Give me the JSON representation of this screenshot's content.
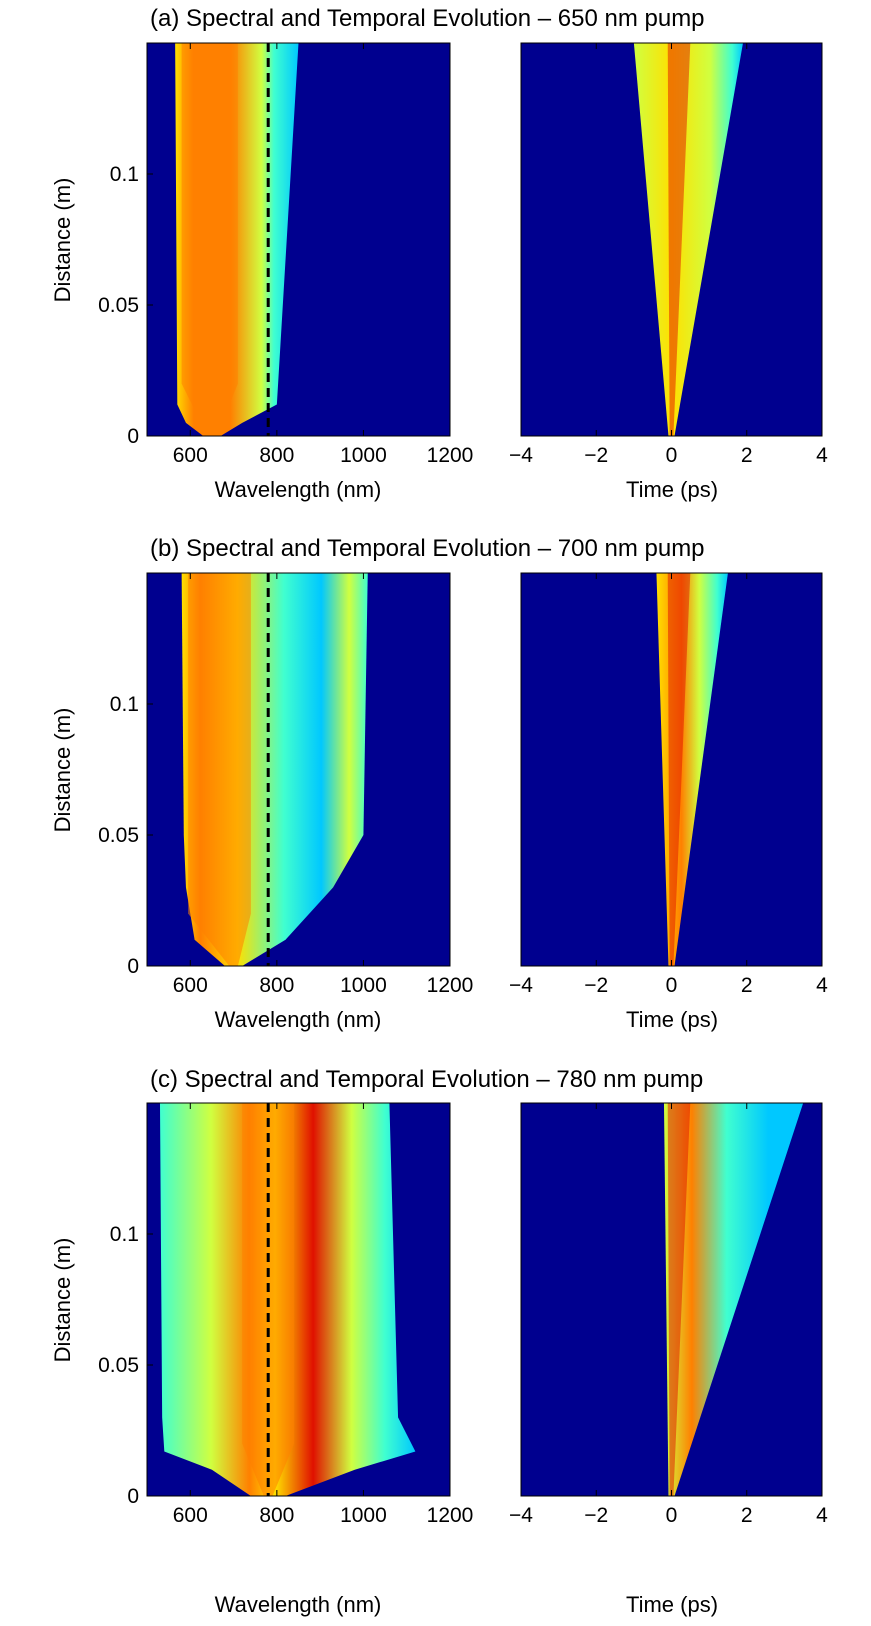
{
  "colors": {
    "background": "#00008f",
    "colormap": [
      "#00008f",
      "#0050ff",
      "#00c8ff",
      "#40ffd0",
      "#d0ff40",
      "#ffe000",
      "#ff8000",
      "#e01000",
      "#800000"
    ],
    "pump_marker": "#000000"
  },
  "chart_data": [
    {
      "type": "heatmap",
      "panel": "a",
      "title": "(a) Spectral and Temporal Evolution – 650 nm pump",
      "spectral": {
        "xlabel": "Wavelength (nm)",
        "ylabel": "Distance (m)",
        "xlim": [
          500,
          1200
        ],
        "ylim": [
          0,
          0.15
        ],
        "xticks": [
          "600",
          "800",
          "1000",
          "1200"
        ],
        "yticks": [
          "0",
          "0.05",
          "0.1"
        ],
        "pump_wavelength_nm": 650,
        "dashed_line_nm": 780,
        "envelope": [
          {
            "z": 0.0,
            "lo": 630,
            "hi": 670
          },
          {
            "z": 0.005,
            "lo": 590,
            "hi": 720
          },
          {
            "z": 0.012,
            "lo": 570,
            "hi": 800
          },
          {
            "z": 0.15,
            "lo": 565,
            "hi": 850
          }
        ]
      },
      "temporal": {
        "xlabel": "Time (ps)",
        "xlim": [
          -4,
          4
        ],
        "ylim": [
          0,
          0.15
        ],
        "xticks": [
          "−4",
          "−2",
          "0",
          "2",
          "4"
        ],
        "envelope": [
          {
            "z": 0.0,
            "lo": -0.08,
            "hi": 0.08
          },
          {
            "z": 0.15,
            "lo": -1.0,
            "hi": 1.9
          }
        ]
      }
    },
    {
      "type": "heatmap",
      "panel": "b",
      "title": "(b) Spectral and Temporal Evolution – 700 nm pump",
      "spectral": {
        "xlabel": "Wavelength (nm)",
        "ylabel": "Distance (m)",
        "xlim": [
          500,
          1200
        ],
        "ylim": [
          0,
          0.15
        ],
        "xticks": [
          "600",
          "800",
          "1000",
          "1200"
        ],
        "yticks": [
          "0",
          "0.05",
          "0.1"
        ],
        "pump_wavelength_nm": 700,
        "dashed_line_nm": 780,
        "envelope": [
          {
            "z": 0.0,
            "lo": 680,
            "hi": 720
          },
          {
            "z": 0.01,
            "lo": 610,
            "hi": 820
          },
          {
            "z": 0.03,
            "lo": 590,
            "hi": 930
          },
          {
            "z": 0.05,
            "lo": 585,
            "hi": 1000
          },
          {
            "z": 0.15,
            "lo": 580,
            "hi": 1010
          }
        ]
      },
      "temporal": {
        "xlabel": "Time (ps)",
        "xlim": [
          -4,
          4
        ],
        "ylim": [
          0,
          0.15
        ],
        "xticks": [
          "−4",
          "−2",
          "0",
          "2",
          "4"
        ],
        "envelope": [
          {
            "z": 0.0,
            "lo": -0.08,
            "hi": 0.08
          },
          {
            "z": 0.15,
            "lo": -0.4,
            "hi": 1.5
          }
        ]
      }
    },
    {
      "type": "heatmap",
      "panel": "c",
      "title": "(c) Spectral and Temporal Evolution – 780 nm pump",
      "spectral": {
        "xlabel": "Wavelength (nm)",
        "ylabel": "Distance (m)",
        "xlim": [
          500,
          1200
        ],
        "ylim": [
          0,
          0.15
        ],
        "xticks": [
          "600",
          "800",
          "1000",
          "1200"
        ],
        "yticks": [
          "0",
          "0.05",
          "0.1"
        ],
        "pump_wavelength_nm": 780,
        "dashed_line_nm": 780,
        "envelope": [
          {
            "z": 0.0,
            "lo": 740,
            "hi": 820
          },
          {
            "z": 0.01,
            "lo": 650,
            "hi": 980
          },
          {
            "z": 0.017,
            "lo": 540,
            "hi": 1120
          },
          {
            "z": 0.03,
            "lo": 535,
            "hi": 1080
          },
          {
            "z": 0.15,
            "lo": 530,
            "hi": 1060
          }
        ]
      },
      "temporal": {
        "xlabel": "Time (ps)",
        "xlim": [
          -4,
          4
        ],
        "ylim": [
          0,
          0.15
        ],
        "xticks": [
          "−4",
          "−2",
          "0",
          "2",
          "4"
        ],
        "envelope": [
          {
            "z": 0.0,
            "lo": -0.08,
            "hi": 0.08
          },
          {
            "z": 0.15,
            "lo": -0.2,
            "hi": 3.5
          }
        ]
      }
    }
  ]
}
